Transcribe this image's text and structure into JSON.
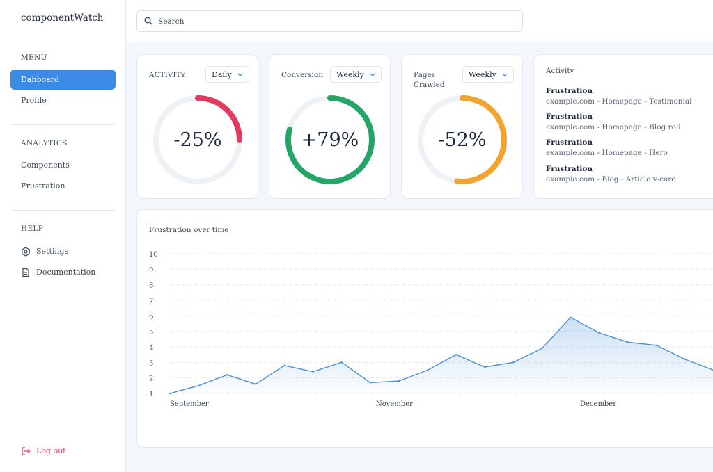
{
  "app": {
    "title": "componentWatch"
  },
  "sidebar": {
    "menu_label": "MENU",
    "menu_items": [
      {
        "label": "Dahboard",
        "active": true
      },
      {
        "label": "Profile",
        "active": false
      }
    ],
    "analytics_label": "ANALYTICS",
    "analytics_items": [
      {
        "label": "Components"
      },
      {
        "label": "Frustration"
      }
    ],
    "help_label": "HELP",
    "help_items": [
      {
        "label": "Settings",
        "icon": "hexagon-settings-icon"
      },
      {
        "label": "Documentation",
        "icon": "document-icon"
      }
    ],
    "logout_label": "Log out",
    "logout_icon": "logout-icon"
  },
  "search": {
    "placeholder": "Search",
    "value": ""
  },
  "stats": [
    {
      "title": "ACTIVITY",
      "period": "Daily",
      "value_text": "-25%",
      "percent": 25,
      "color": "#e23a5f"
    },
    {
      "title": "Conversion",
      "period": "Weekly",
      "value_text": "+79%",
      "percent": 79,
      "color": "#22a565"
    },
    {
      "title_line1": "Pages",
      "title_line2": "Crawled",
      "period": "Weekly",
      "value_text": "-52%",
      "percent": 52,
      "color": "#f1a430"
    }
  ],
  "activity": {
    "title": "Activity",
    "items": [
      {
        "heading": "Frustration",
        "detail": "example.com - Homepage - Testimonial"
      },
      {
        "heading": "Frustration",
        "detail": "example.com - Homepage - Blog roll"
      },
      {
        "heading": "Frustration",
        "detail": "example.com - Homepage - Hero"
      },
      {
        "heading": "Frustration",
        "detail": "example.com - Blog - Article v-card"
      }
    ]
  },
  "chart_data": {
    "type": "area",
    "title": "Frustration over time",
    "xlabel": "",
    "ylabel": "",
    "ylim": [
      1,
      10
    ],
    "yticks": [
      1,
      2,
      3,
      4,
      5,
      6,
      7,
      8,
      9,
      10
    ],
    "xtick_labels": [
      "September",
      "November",
      "December"
    ],
    "grid": true,
    "line_color": "#4a8fd6",
    "series": [
      {
        "values": [
          1.0,
          1.5,
          2.2,
          1.6,
          2.8,
          2.4,
          3.0,
          1.7,
          1.8,
          2.5,
          3.5,
          2.7,
          3.0,
          3.9,
          5.9,
          4.9,
          4.3,
          4.1,
          3.2,
          2.5
        ]
      }
    ]
  },
  "colors": {
    "accent": "#3b8be6",
    "danger": "#e03a5c",
    "track": "#eef2f7"
  }
}
